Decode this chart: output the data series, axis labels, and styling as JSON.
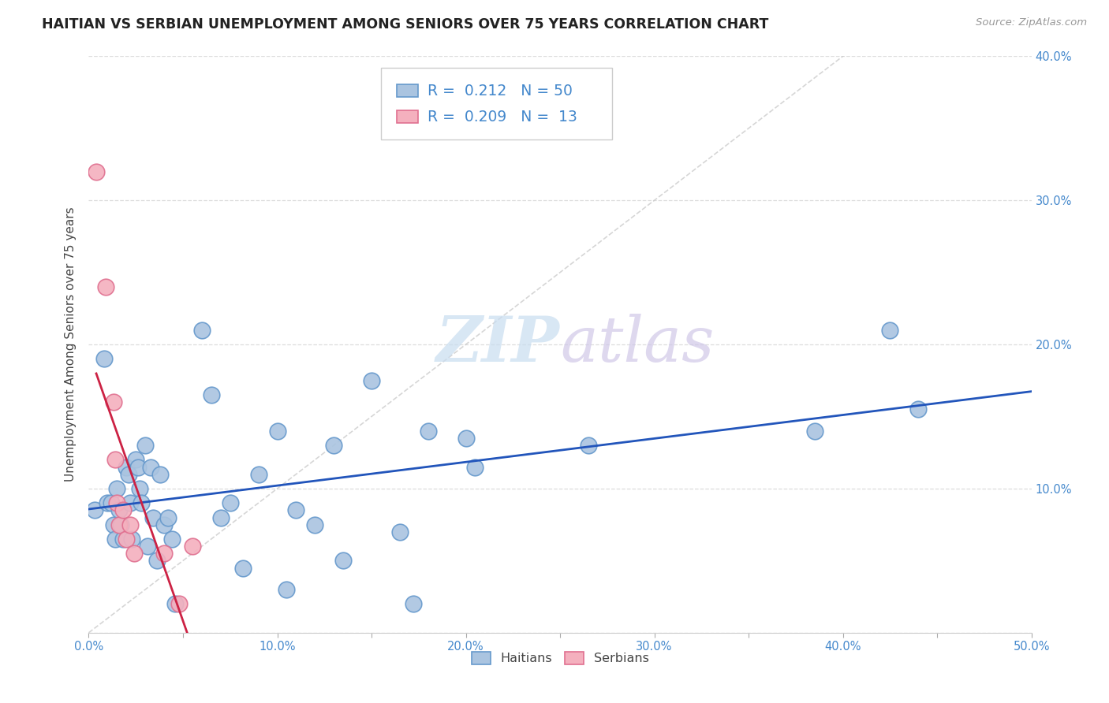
{
  "title": "HAITIAN VS SERBIAN UNEMPLOYMENT AMONG SENIORS OVER 75 YEARS CORRELATION CHART",
  "source": "Source: ZipAtlas.com",
  "ylabel": "Unemployment Among Seniors over 75 years",
  "xlim": [
    0,
    0.5
  ],
  "ylim": [
    0,
    0.4
  ],
  "xticks": [
    0.0,
    0.05,
    0.1,
    0.15,
    0.2,
    0.25,
    0.3,
    0.35,
    0.4,
    0.45,
    0.5
  ],
  "yticks": [
    0.0,
    0.1,
    0.2,
    0.3,
    0.4
  ],
  "xtick_labels": [
    "0.0%",
    "",
    "10.0%",
    "",
    "20.0%",
    "",
    "30.0%",
    "",
    "40.0%",
    "",
    "50.0%"
  ],
  "ytick_labels_right": [
    "",
    "10.0%",
    "20.0%",
    "30.0%",
    "40.0%"
  ],
  "haitian_color": "#aac4e0",
  "serbian_color": "#f4b0be",
  "haitian_edge": "#6699cc",
  "serbian_edge": "#e07090",
  "trend_haitian_color": "#2255bb",
  "trend_serbian_color": "#cc2244",
  "diagonal_color": "#cccccc",
  "r_haitian": 0.212,
  "n_haitian": 50,
  "r_serbian": 0.209,
  "n_serbian": 13,
  "background_color": "#ffffff",
  "watermark_zip": "ZIP",
  "watermark_atlas": "atlas",
  "tick_color": "#4488cc",
  "haitian_x": [
    0.003,
    0.008,
    0.01,
    0.012,
    0.013,
    0.014,
    0.015,
    0.016,
    0.017,
    0.018,
    0.02,
    0.021,
    0.022,
    0.023,
    0.025,
    0.026,
    0.027,
    0.028,
    0.03,
    0.031,
    0.033,
    0.034,
    0.036,
    0.038,
    0.04,
    0.042,
    0.044,
    0.046,
    0.06,
    0.065,
    0.07,
    0.075,
    0.082,
    0.09,
    0.1,
    0.105,
    0.11,
    0.12,
    0.13,
    0.135,
    0.15,
    0.165,
    0.172,
    0.18,
    0.2,
    0.205,
    0.265,
    0.385,
    0.425,
    0.44
  ],
  "haitian_y": [
    0.085,
    0.19,
    0.09,
    0.09,
    0.075,
    0.065,
    0.1,
    0.085,
    0.075,
    0.065,
    0.115,
    0.11,
    0.09,
    0.065,
    0.12,
    0.115,
    0.1,
    0.09,
    0.13,
    0.06,
    0.115,
    0.08,
    0.05,
    0.11,
    0.075,
    0.08,
    0.065,
    0.02,
    0.21,
    0.165,
    0.08,
    0.09,
    0.045,
    0.11,
    0.14,
    0.03,
    0.085,
    0.075,
    0.13,
    0.05,
    0.175,
    0.07,
    0.02,
    0.14,
    0.135,
    0.115,
    0.13,
    0.14,
    0.21,
    0.155
  ],
  "serbian_x": [
    0.004,
    0.009,
    0.013,
    0.014,
    0.015,
    0.016,
    0.018,
    0.02,
    0.022,
    0.024,
    0.04,
    0.048,
    0.055
  ],
  "serbian_y": [
    0.32,
    0.24,
    0.16,
    0.12,
    0.09,
    0.075,
    0.085,
    0.065,
    0.075,
    0.055,
    0.055,
    0.02,
    0.06
  ]
}
